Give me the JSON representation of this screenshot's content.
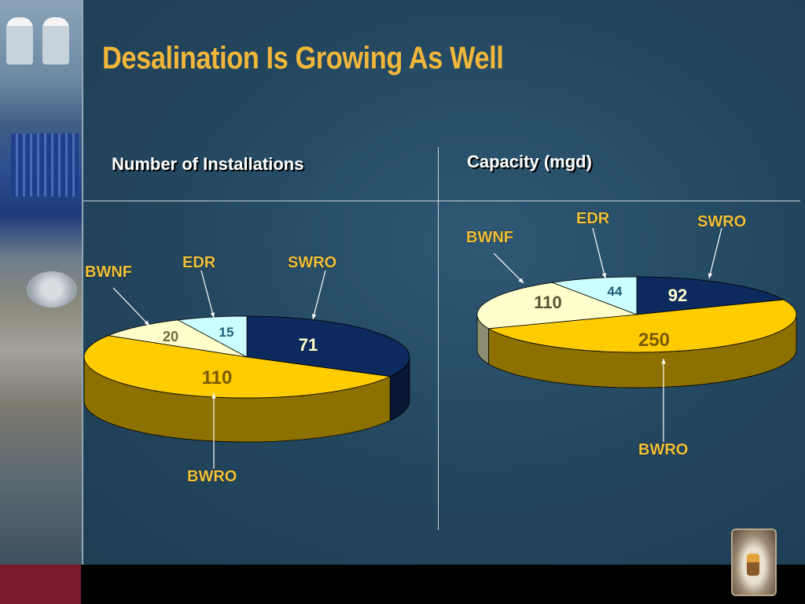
{
  "slide": {
    "title": "Desalination Is Growing As Well"
  },
  "chart_data": [
    {
      "type": "pie",
      "title": "Number of Installations",
      "categories": [
        "SWRO",
        "BWRO",
        "BWNF",
        "EDR"
      ],
      "values": [
        71,
        110,
        20,
        15
      ],
      "labels": [
        "71",
        "110",
        "20",
        "15"
      ],
      "colors": [
        "#0c2a5e",
        "#ffcc00",
        "#ffffcc",
        "#ccffff"
      ],
      "legend": "callouts"
    },
    {
      "type": "pie",
      "title": "Capacity (mgd)",
      "categories": [
        "SWRO",
        "BWRO",
        "BWNF",
        "EDR"
      ],
      "values": [
        92,
        250,
        110,
        44
      ],
      "labels": [
        "92",
        "250",
        "110",
        "44"
      ],
      "colors": [
        "#0c2a5e",
        "#ffcc00",
        "#ffffcc",
        "#ccffff"
      ],
      "legend": "callouts"
    }
  ]
}
